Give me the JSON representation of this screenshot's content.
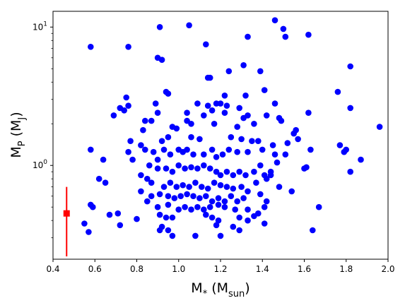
{
  "chart_data": {
    "type": "scatter",
    "xlabel_main": "M",
    "xlabel_sub": "*",
    "xlabel_paren": "(M",
    "xlabel_paren_sub": "sun",
    "xlabel_close": ")",
    "ylabel_main": "M",
    "ylabel_sub": "P",
    "ylabel_paren": "(M",
    "ylabel_paren_sub": "J",
    "ylabel_close": ")",
    "xlim": [
      0.4,
      2.0
    ],
    "ylim": [
      0.21,
      13.0
    ],
    "yscale": "log",
    "x_ticks": [
      {
        "value": 0.4,
        "label": "0.4"
      },
      {
        "value": 0.6,
        "label": "0.6"
      },
      {
        "value": 0.8,
        "label": "0.8"
      },
      {
        "value": 1.0,
        "label": "1.0"
      },
      {
        "value": 1.2,
        "label": "1.2"
      },
      {
        "value": 1.4,
        "label": "1.4"
      },
      {
        "value": 1.6,
        "label": "1.6"
      },
      {
        "value": 1.8,
        "label": "1.8"
      },
      {
        "value": 2.0,
        "label": "2.0"
      }
    ],
    "y_ticks": [
      {
        "value": 1,
        "base": "10",
        "exp": "0"
      },
      {
        "value": 10,
        "base": "10",
        "exp": "1"
      }
    ],
    "grid": false,
    "colors": {
      "points": "#0000ff",
      "errorbar": "#ff0000"
    },
    "errorbar_point": {
      "x": 0.465,
      "y": 0.45,
      "y_low": 0.22,
      "y_high": 0.7
    },
    "points": [
      [
        0.58,
        7.2
      ],
      [
        0.76,
        7.2
      ],
      [
        0.91,
        10.0
      ],
      [
        1.05,
        10.3
      ],
      [
        0.9,
        6.0
      ],
      [
        0.92,
        5.8
      ],
      [
        1.13,
        7.5
      ],
      [
        1.46,
        11.2
      ],
      [
        1.5,
        9.7
      ],
      [
        1.51,
        8.5
      ],
      [
        1.62,
        8.8
      ],
      [
        1.33,
        8.5
      ],
      [
        1.82,
        5.2
      ],
      [
        0.94,
        3.4
      ],
      [
        0.95,
        3.3
      ],
      [
        1.14,
        4.3
      ],
      [
        1.15,
        4.3
      ],
      [
        1.24,
        4.8
      ],
      [
        1.31,
        5.3
      ],
      [
        1.39,
        4.8
      ],
      [
        1.41,
        3.5
      ],
      [
        1.76,
        3.4
      ],
      [
        0.75,
        3.1
      ],
      [
        1.22,
        3.2
      ],
      [
        1.32,
        3.2
      ],
      [
        0.89,
        2.8
      ],
      [
        1.09,
        2.8
      ],
      [
        1.14,
        2.7
      ],
      [
        1.18,
        2.8
      ],
      [
        1.2,
        2.8
      ],
      [
        1.23,
        2.7
      ],
      [
        1.29,
        2.6
      ],
      [
        1.46,
        2.8
      ],
      [
        1.62,
        2.4
      ],
      [
        1.82,
        2.6
      ],
      [
        0.76,
        2.7
      ],
      [
        0.72,
        2.6
      ],
      [
        0.74,
        2.5
      ],
      [
        0.69,
        2.3
      ],
      [
        0.9,
        2.4
      ],
      [
        1.04,
        2.4
      ],
      [
        1.12,
        2.3
      ],
      [
        1.16,
        2.5
      ],
      [
        1.22,
        2.4
      ],
      [
        1.31,
        2.2
      ],
      [
        1.33,
        2.3
      ],
      [
        1.42,
        2.3
      ],
      [
        1.48,
        2.2
      ],
      [
        1.49,
        2.1
      ],
      [
        1.04,
        2.1
      ],
      [
        1.06,
        2.0
      ],
      [
        0.84,
        2.1
      ],
      [
        0.87,
        2.1
      ],
      [
        0.97,
        1.9
      ],
      [
        0.99,
        1.85
      ],
      [
        0.83,
        1.8
      ],
      [
        1.17,
        2.0
      ],
      [
        1.28,
        1.9
      ],
      [
        1.36,
        2.0
      ],
      [
        1.56,
        1.8
      ],
      [
        1.55,
        1.7
      ],
      [
        1.96,
        1.9
      ],
      [
        0.77,
        1.5
      ],
      [
        0.82,
        1.4
      ],
      [
        0.92,
        1.5
      ],
      [
        0.95,
        1.6
      ],
      [
        1.06,
        1.6
      ],
      [
        1.1,
        1.55
      ],
      [
        1.25,
        1.6
      ],
      [
        1.3,
        1.55
      ],
      [
        1.35,
        1.5
      ],
      [
        1.38,
        1.5
      ],
      [
        1.45,
        1.4
      ],
      [
        1.52,
        1.45
      ],
      [
        1.57,
        1.55
      ],
      [
        1.63,
        1.3
      ],
      [
        1.77,
        1.4
      ],
      [
        1.8,
        1.3
      ],
      [
        1.79,
        1.25
      ],
      [
        0.58,
        1.3
      ],
      [
        0.76,
        1.25
      ],
      [
        0.84,
        1.3
      ],
      [
        0.88,
        1.25
      ],
      [
        0.9,
        1.1
      ],
      [
        0.93,
        1.3
      ],
      [
        0.96,
        1.2
      ],
      [
        1.0,
        1.3
      ],
      [
        1.02,
        1.25
      ],
      [
        1.04,
        1.3
      ],
      [
        1.07,
        1.2
      ],
      [
        1.12,
        1.2
      ],
      [
        1.16,
        1.3
      ],
      [
        1.18,
        1.15
      ],
      [
        1.21,
        1.2
      ],
      [
        1.24,
        1.3
      ],
      [
        1.28,
        1.25
      ],
      [
        1.33,
        1.25
      ],
      [
        1.4,
        1.3
      ],
      [
        1.46,
        1.2
      ],
      [
        1.51,
        1.2
      ],
      [
        1.87,
        1.1
      ],
      [
        0.64,
        1.1
      ],
      [
        0.78,
        1.1
      ],
      [
        0.86,
        1.0
      ],
      [
        0.9,
        0.95
      ],
      [
        0.94,
        0.95
      ],
      [
        0.97,
        0.9
      ],
      [
        1.0,
        1.0
      ],
      [
        1.03,
        0.95
      ],
      [
        1.06,
        0.97
      ],
      [
        1.09,
        0.95
      ],
      [
        1.12,
        1.0
      ],
      [
        1.15,
        0.95
      ],
      [
        1.18,
        0.9
      ],
      [
        1.2,
        0.85
      ],
      [
        1.23,
        0.9
      ],
      [
        1.26,
        0.85
      ],
      [
        1.29,
        0.9
      ],
      [
        1.32,
        0.85
      ],
      [
        1.36,
        0.9
      ],
      [
        1.39,
        1.0
      ],
      [
        1.41,
        0.85
      ],
      [
        1.44,
        0.9
      ],
      [
        1.47,
        1.05
      ],
      [
        1.6,
        0.95
      ],
      [
        1.61,
        0.97
      ],
      [
        1.82,
        0.9
      ],
      [
        0.62,
        0.8
      ],
      [
        0.65,
        0.75
      ],
      [
        0.82,
        0.85
      ],
      [
        0.85,
        0.8
      ],
      [
        0.87,
        0.75
      ],
      [
        0.93,
        0.7
      ],
      [
        0.96,
        0.75
      ],
      [
        0.99,
        0.7
      ],
      [
        1.02,
        0.72
      ],
      [
        1.05,
        0.7
      ],
      [
        1.08,
        0.75
      ],
      [
        1.11,
        0.7
      ],
      [
        1.14,
        0.68
      ],
      [
        1.17,
        0.75
      ],
      [
        1.2,
        0.72
      ],
      [
        1.23,
        0.7
      ],
      [
        1.26,
        0.68
      ],
      [
        1.3,
        0.7
      ],
      [
        1.33,
        0.65
      ],
      [
        1.37,
        0.75
      ],
      [
        1.42,
        0.8
      ],
      [
        1.44,
        0.85
      ],
      [
        1.48,
        0.7
      ],
      [
        1.54,
        0.65
      ],
      [
        0.82,
        0.65
      ],
      [
        0.87,
        0.6
      ],
      [
        0.91,
        0.62
      ],
      [
        0.95,
        0.6
      ],
      [
        0.98,
        0.58
      ],
      [
        1.01,
        0.6
      ],
      [
        1.04,
        0.62
      ],
      [
        1.07,
        0.6
      ],
      [
        1.1,
        0.58
      ],
      [
        1.13,
        0.6
      ],
      [
        1.16,
        0.55
      ],
      [
        1.19,
        0.58
      ],
      [
        1.22,
        0.55
      ],
      [
        1.25,
        0.6
      ],
      [
        1.28,
        0.55
      ],
      [
        1.31,
        0.58
      ],
      [
        1.39,
        0.62
      ],
      [
        1.42,
        0.55
      ],
      [
        0.58,
        0.52
      ],
      [
        0.59,
        0.5
      ],
      [
        0.85,
        0.55
      ],
      [
        0.9,
        0.5
      ],
      [
        0.95,
        0.52
      ],
      [
        1.0,
        0.48
      ],
      [
        1.03,
        0.5
      ],
      [
        1.06,
        0.48
      ],
      [
        1.09,
        0.5
      ],
      [
        1.12,
        0.48
      ],
      [
        1.15,
        0.5
      ],
      [
        1.19,
        0.52
      ],
      [
        1.22,
        0.5
      ],
      [
        1.27,
        0.48
      ],
      [
        1.33,
        0.48
      ],
      [
        1.38,
        0.45
      ],
      [
        1.41,
        0.5
      ],
      [
        1.67,
        0.5
      ],
      [
        0.67,
        0.44
      ],
      [
        0.71,
        0.45
      ],
      [
        0.91,
        0.44
      ],
      [
        0.94,
        0.42
      ],
      [
        0.97,
        0.42
      ],
      [
        1.13,
        0.44
      ],
      [
        1.16,
        0.42
      ],
      [
        1.19,
        0.4
      ],
      [
        1.29,
        0.42
      ],
      [
        1.33,
        0.4
      ],
      [
        1.36,
        0.43
      ],
      [
        0.8,
        0.41
      ],
      [
        0.55,
        0.38
      ],
      [
        0.72,
        0.37
      ],
      [
        0.92,
        0.36
      ],
      [
        0.95,
        0.34
      ],
      [
        1.18,
        0.37
      ],
      [
        1.26,
        0.36
      ],
      [
        1.41,
        0.38
      ],
      [
        1.64,
        0.34
      ],
      [
        0.57,
        0.33
      ],
      [
        0.91,
        0.34
      ],
      [
        0.97,
        0.31
      ],
      [
        1.08,
        0.31
      ],
      [
        1.2,
        0.31
      ],
      [
        1.29,
        0.34
      ]
    ]
  }
}
